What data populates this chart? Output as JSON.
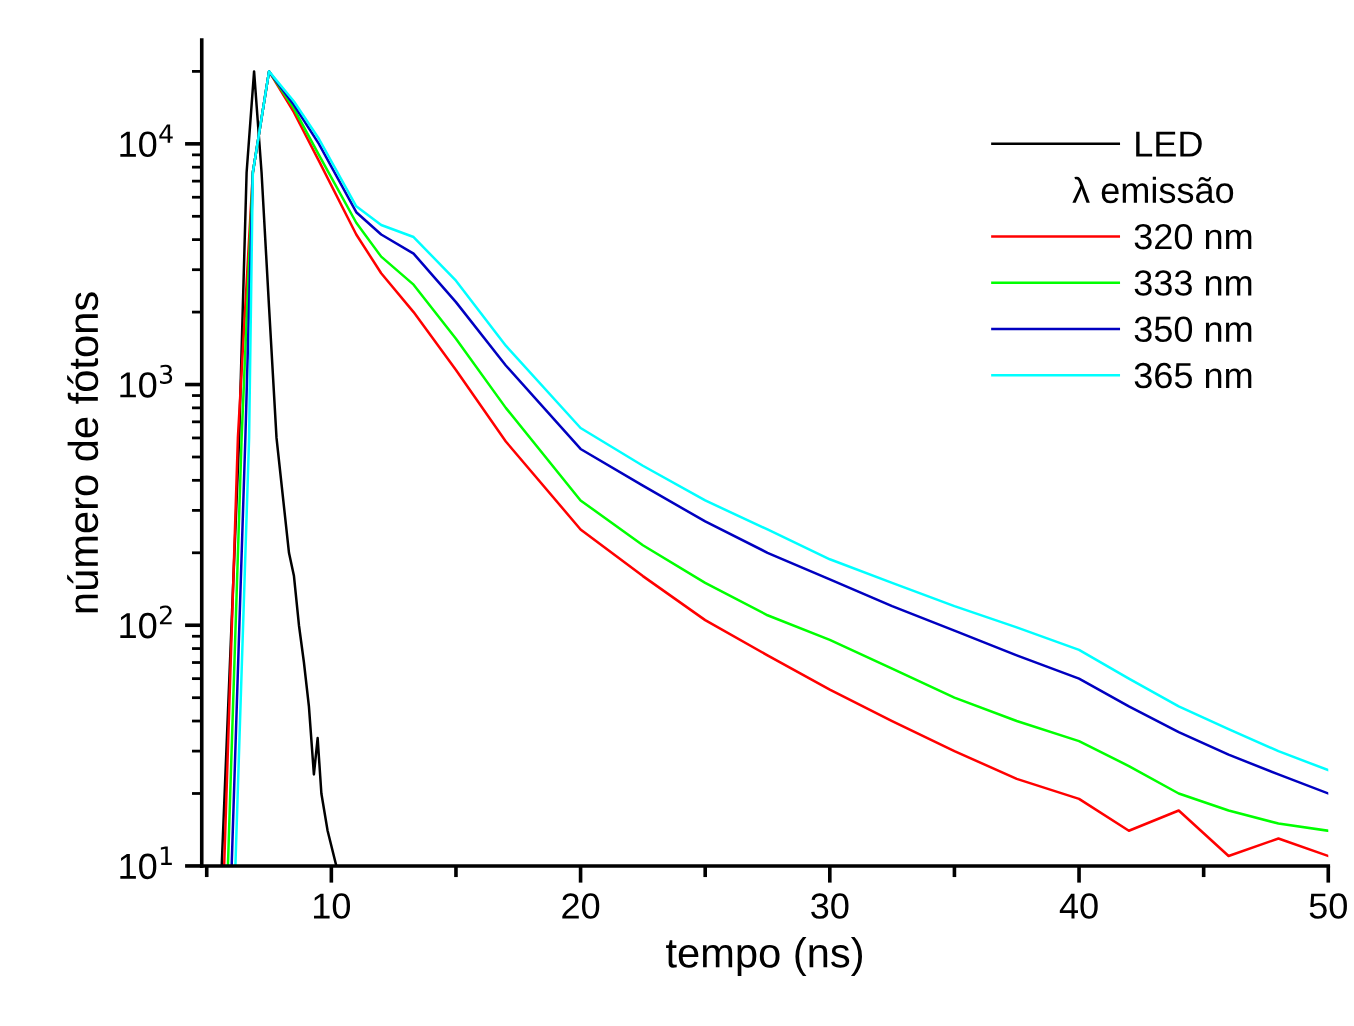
{
  "chart_data": {
    "type": "line",
    "xlabel": "tempo (ns)",
    "ylabel": "número de fótons",
    "legend_title": "λ emissão",
    "log": "y",
    "legend": "top right",
    "grid": false,
    "line_style": "solid",
    "marker": "none",
    "xlim": [
      4.8,
      50
    ],
    "ylim": [
      10,
      27000
    ],
    "xticks": [
      {
        "value": 5,
        "label": null
      },
      10,
      {
        "value": 15,
        "label": null
      },
      20,
      {
        "value": 25,
        "label": null
      },
      30,
      {
        "value": 35,
        "label": null
      },
      40,
      {
        "value": 45,
        "label": null
      },
      50
    ],
    "yticks": [
      {
        "value": 10,
        "label": "10$^{1}$"
      },
      {
        "value": 100,
        "label": "10$^{2}$"
      },
      {
        "value": 1000,
        "label": "10$^{3}$"
      },
      {
        "value": 10000,
        "label": "10$^{4}$"
      }
    ],
    "series": [
      {
        "name": "LED",
        "color": "#000000",
        "x": [
          5.6,
          6.3,
          6.6,
          6.9,
          7.2,
          7.5,
          7.8,
          8.3,
          8.5,
          8.7,
          8.9,
          9.1,
          9.3,
          9.45,
          9.6,
          9.85,
          10.2
        ],
        "values": [
          10,
          600,
          7600,
          20000,
          7600,
          2100,
          600,
          200,
          160,
          100,
          70,
          46,
          24,
          34,
          20,
          14,
          10
        ]
      },
      {
        "name": "320 nm",
        "color": "#ff0000",
        "x": [
          5.7,
          6.25,
          6.85,
          7.5,
          8.5,
          9.5,
          11,
          12,
          13.3,
          15,
          17,
          20,
          22.5,
          25,
          27.5,
          30,
          32.5,
          35,
          37.5,
          40,
          42,
          44,
          46,
          48,
          50
        ],
        "values": [
          10,
          600,
          7600,
          20000,
          13500,
          8500,
          4200,
          2900,
          2000,
          1150,
          580,
          250,
          160,
          105,
          75,
          54,
          40,
          30,
          23,
          19,
          14,
          17,
          11,
          13,
          11
        ]
      },
      {
        "name": "333 nm",
        "color": "#00ff00",
        "x": [
          5.85,
          6.4,
          6.85,
          7.5,
          8.5,
          9.5,
          11,
          12,
          13.3,
          15,
          17,
          20,
          22.5,
          25,
          27.5,
          30,
          32.5,
          35,
          37.5,
          40,
          42,
          44,
          46,
          48,
          50
        ],
        "values": [
          10,
          600,
          7600,
          20000,
          14000,
          9000,
          4700,
          3400,
          2600,
          1550,
          800,
          330,
          215,
          150,
          110,
          87,
          66,
          50,
          40,
          33,
          26,
          20,
          17,
          15,
          14
        ]
      },
      {
        "name": "350 nm",
        "color": "#0000c0",
        "x": [
          6.0,
          6.55,
          6.85,
          7.5,
          8.5,
          9.5,
          11,
          12,
          13.3,
          15,
          17,
          20,
          22.5,
          25,
          27.5,
          30,
          32.5,
          35,
          37.5,
          40,
          42,
          44,
          46,
          48,
          50
        ],
        "values": [
          10,
          600,
          7600,
          20000,
          14500,
          10000,
          5200,
          4200,
          3500,
          2200,
          1200,
          540,
          380,
          270,
          200,
          155,
          120,
          95,
          75,
          60,
          46,
          36,
          29,
          24,
          20
        ]
      },
      {
        "name": "365 nm",
        "color": "#00ffff",
        "x": [
          6.15,
          6.7,
          6.85,
          7.5,
          8.5,
          9.5,
          11,
          12,
          13.3,
          15,
          17,
          20,
          22.5,
          25,
          27.5,
          30,
          32.5,
          35,
          37.5,
          40,
          42,
          44,
          46,
          48,
          50
        ],
        "values": [
          10,
          600,
          7600,
          20000,
          15000,
          10500,
          5500,
          4600,
          4100,
          2700,
          1450,
          660,
          460,
          330,
          250,
          188,
          150,
          120,
          98,
          79,
          60,
          46,
          37,
          30,
          25
        ]
      }
    ]
  }
}
